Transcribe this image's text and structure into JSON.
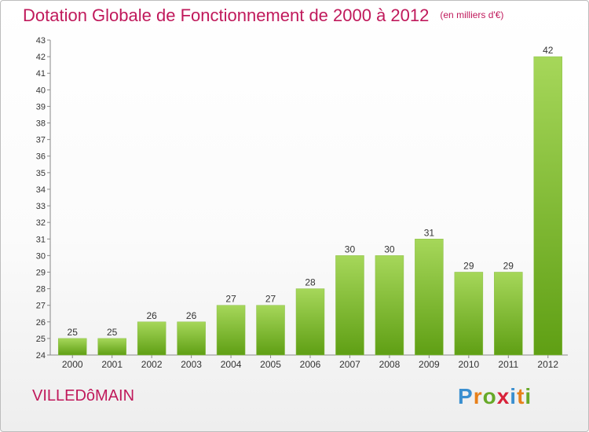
{
  "title": "Dotation Globale de Fonctionnement de 2000 à 2012",
  "unit": "(en milliers d'€)",
  "commune": "VILLEDôMAIN",
  "logo": {
    "letters": [
      "P",
      "r",
      "o",
      "x",
      "i",
      "t",
      "i"
    ],
    "colors": [
      "#3a8fd0",
      "#e7801a",
      "#67a928",
      "#d8223a",
      "#3a8fd0",
      "#e7801a",
      "#67a928"
    ]
  },
  "colors": {
    "title": "#c0195b",
    "bar_top": "#a6d75a",
    "bar_bottom": "#5f9f14",
    "axis": "#888888",
    "grid": "#cccccc"
  },
  "chart_data": {
    "type": "bar",
    "categories": [
      "2000",
      "2001",
      "2002",
      "2003",
      "2004",
      "2005",
      "2006",
      "2007",
      "2008",
      "2009",
      "2010",
      "2011",
      "2012"
    ],
    "values": [
      25,
      25,
      26,
      26,
      27,
      27,
      28,
      30,
      30,
      31,
      29,
      29,
      42
    ],
    "data_labels": [
      "25",
      "25",
      "26",
      "26",
      "27",
      "27",
      "28",
      "30",
      "30",
      "31",
      "29",
      "29",
      "42"
    ],
    "ylim": [
      24,
      43
    ],
    "yticks": [
      24,
      25,
      26,
      27,
      28,
      29,
      30,
      31,
      32,
      33,
      34,
      35,
      36,
      37,
      38,
      39,
      40,
      41,
      42,
      43
    ],
    "grid": false,
    "legend": "none"
  }
}
